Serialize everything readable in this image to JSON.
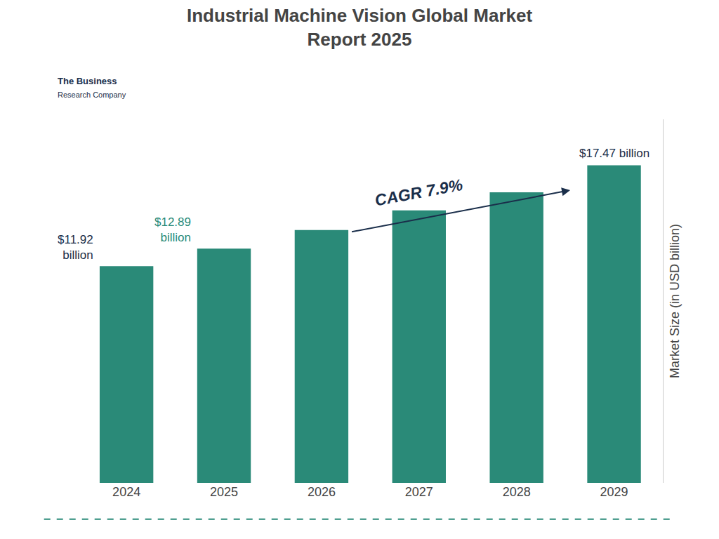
{
  "chart_data": {
    "type": "bar",
    "title": "Industrial Machine Vision Global Market\nReport 2025",
    "categories": [
      "2024",
      "2025",
      "2026",
      "2027",
      "2028",
      "2029"
    ],
    "values": [
      11.92,
      12.89,
      13.91,
      14.99,
      15.98,
      17.47
    ],
    "color": "#2a8a78",
    "ylabel": "Market Size (in USD billion)",
    "ylim": [
      0,
      20
    ],
    "tick_labels": "x",
    "grid": false,
    "annotations": [
      {
        "text": "$11.92\nbillion",
        "category": "2024",
        "color": "#1a2e4a"
      },
      {
        "text": "$12.89\nbillion",
        "category": "2025",
        "color": "#2a8a78"
      },
      {
        "text": "$17.47 billion",
        "category": "2029",
        "color": "#1a2e4a"
      },
      {
        "text": "CAGR 7.9%",
        "color": "#1a2e4a"
      },
      {
        "text": "The Business",
        "color": "#1a2e4a"
      },
      {
        "text": "Research Company",
        "color": "#1a2e4a"
      }
    ]
  }
}
